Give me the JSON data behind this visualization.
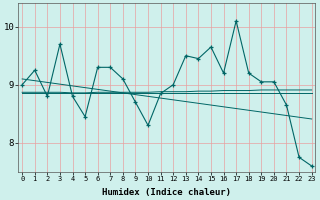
{
  "xlabel": "Humidex (Indice chaleur)",
  "bg_color": "#cff0ec",
  "grid_color": "#e8a0a0",
  "line_color": "#006666",
  "x_values": [
    0,
    1,
    2,
    3,
    4,
    5,
    6,
    7,
    8,
    9,
    10,
    11,
    12,
    13,
    14,
    15,
    16,
    17,
    18,
    19,
    20,
    21,
    22,
    23
  ],
  "series1": [
    9.0,
    9.25,
    8.8,
    9.7,
    8.8,
    8.45,
    9.3,
    9.3,
    9.1,
    8.7,
    8.3,
    8.85,
    9.0,
    9.5,
    9.45,
    9.65,
    9.2,
    10.1,
    9.2,
    9.05,
    9.05,
    8.65,
    7.75,
    7.6
  ],
  "series2": [
    8.85,
    8.85,
    8.85,
    8.85,
    8.85,
    8.85,
    8.85,
    8.85,
    8.85,
    8.85,
    8.85,
    8.85,
    8.85,
    8.85,
    8.85,
    8.85,
    8.85,
    8.85,
    8.85,
    8.85,
    8.85,
    8.85,
    8.85,
    8.85
  ],
  "trend1": [
    9.1,
    9.07,
    9.04,
    9.01,
    8.98,
    8.95,
    8.92,
    8.89,
    8.86,
    8.83,
    8.8,
    8.77,
    8.74,
    8.71,
    8.68,
    8.65,
    8.62,
    8.59,
    8.56,
    8.53,
    8.5,
    8.47,
    8.44,
    8.41
  ],
  "trend2": [
    8.87,
    8.87,
    8.87,
    8.87,
    8.86,
    8.86,
    8.87,
    8.87,
    8.87,
    8.87,
    8.87,
    8.88,
    8.88,
    8.88,
    8.89,
    8.89,
    8.9,
    8.9,
    8.9,
    8.91,
    8.91,
    8.91,
    8.91,
    8.91
  ],
  "ylim": [
    7.5,
    10.4
  ],
  "yticks": [
    8,
    9,
    10
  ],
  "figsize": [
    3.2,
    2.0
  ],
  "dpi": 100
}
